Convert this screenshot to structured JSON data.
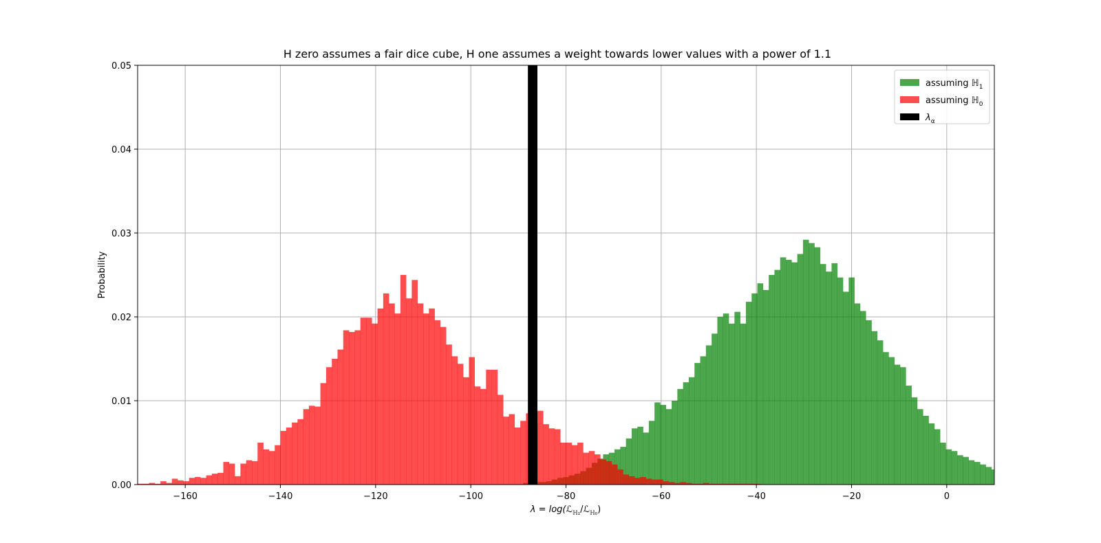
{
  "chart_data": {
    "type": "bar",
    "title": "H zero assumes a fair dice cube, H one assumes a weight towards lower values with a power of 1.1",
    "xlabel": "λ = log(ℒ_{ℍ1}/ℒ_{ℍ0})",
    "xlabel_parts": {
      "main": "λ = log(ℒ",
      "sub1": "ℍ₁",
      "mid": "/ℒ",
      "sub2": "ℍ₀",
      "end": ")"
    },
    "ylabel": "Probability",
    "xlim": [
      -170,
      10
    ],
    "ylim": [
      0,
      0.05
    ],
    "xticks": [
      -160,
      -140,
      -120,
      -100,
      -80,
      -60,
      -40,
      -20,
      0
    ],
    "xtick_labels": [
      "−160",
      "−140",
      "−120",
      "−100",
      "−80",
      "−60",
      "−40",
      "−20",
      "0"
    ],
    "yticks": [
      0,
      0.01,
      0.02,
      0.03,
      0.04,
      0.05
    ],
    "ytick_labels": [
      "0.00",
      "0.01",
      "0.02",
      "0.03",
      "0.04",
      "0.05"
    ],
    "grid": true,
    "legend_position": "top-right",
    "bin_width": 1.2,
    "series": [
      {
        "name": "assuming ℍ1",
        "legend": {
          "prefix": "assuming ",
          "sym": "ℍ",
          "sub": "1"
        },
        "color": "#008000",
        "alpha": 0.7,
        "bin_start": -89,
        "values": [
          0.0002,
          0.0002,
          0.0003,
          0.0003,
          0.0004,
          0.0006,
          0.0008,
          0.0009,
          0.0011,
          0.0013,
          0.0016,
          0.002,
          0.0026,
          0.0031,
          0.0036,
          0.0038,
          0.0042,
          0.0045,
          0.0055,
          0.0067,
          0.0069,
          0.0062,
          0.0076,
          0.0098,
          0.0095,
          0.009,
          0.01,
          0.0114,
          0.0122,
          0.0128,
          0.0145,
          0.0153,
          0.0166,
          0.018,
          0.02,
          0.0204,
          0.0192,
          0.0206,
          0.0192,
          0.0218,
          0.0228,
          0.024,
          0.0232,
          0.025,
          0.0256,
          0.0271,
          0.0268,
          0.0265,
          0.0275,
          0.0292,
          0.0288,
          0.0283,
          0.0263,
          0.0254,
          0.0264,
          0.0247,
          0.023,
          0.0247,
          0.0216,
          0.0207,
          0.0196,
          0.0183,
          0.0172,
          0.0158,
          0.0152,
          0.0143,
          0.014,
          0.0118,
          0.0104,
          0.009,
          0.0082,
          0.0073,
          0.0066,
          0.005,
          0.0042,
          0.004,
          0.0035,
          0.0033,
          0.0029,
          0.0027,
          0.0024,
          0.0021,
          0.0018,
          0.0014,
          0.0011,
          0.0008,
          0.0007,
          0.0005,
          0.0004,
          0.0003,
          0.0002,
          0.0002,
          0.0002,
          0.0001,
          0.0001,
          0.0002,
          0.0001,
          0.0001,
          0.0001,
          0.0001,
          0.0001,
          0.0001,
          0.0001
        ]
      },
      {
        "name": "assuming ℍ0",
        "legend": {
          "prefix": "assuming ",
          "sym": "ℍ",
          "sub": "0"
        },
        "color": "#ff0000",
        "alpha": 0.7,
        "bin_start": -170,
        "values": [
          0.0001,
          0.0001,
          0.0002,
          0.0001,
          0.0004,
          0.0002,
          0.0007,
          0.0005,
          0.0004,
          0.0008,
          0.0009,
          0.0008,
          0.0011,
          0.0013,
          0.0014,
          0.0027,
          0.0025,
          0.001,
          0.0025,
          0.0029,
          0.0028,
          0.005,
          0.0042,
          0.004,
          0.0047,
          0.0064,
          0.0068,
          0.0074,
          0.0078,
          0.009,
          0.0094,
          0.0093,
          0.0121,
          0.014,
          0.015,
          0.0161,
          0.0184,
          0.0182,
          0.0184,
          0.0199,
          0.0199,
          0.0192,
          0.021,
          0.0228,
          0.0216,
          0.0204,
          0.025,
          0.0222,
          0.0244,
          0.0216,
          0.0204,
          0.021,
          0.0196,
          0.0188,
          0.0167,
          0.0153,
          0.0144,
          0.0128,
          0.0152,
          0.0117,
          0.0114,
          0.0137,
          0.0137,
          0.0107,
          0.0081,
          0.0084,
          0.0068,
          0.0076,
          0.0085,
          0.0072,
          0.0088,
          0.0072,
          0.0067,
          0.0066,
          0.005,
          0.005,
          0.0047,
          0.005,
          0.0038,
          0.004,
          0.0036,
          0.003,
          0.0028,
          0.0024,
          0.0018,
          0.0012,
          0.001,
          0.0008,
          0.0009,
          0.0007,
          0.0006,
          0.0006,
          0.0004,
          0.0003,
          0.0002,
          0.0003,
          0.0002,
          0.0001,
          0.0001,
          0.0002,
          0.0001,
          0.0001,
          0.0001,
          0.0001,
          0.0001,
          0.0001,
          0.0001,
          0.0001,
          0.0001
        ]
      }
    ],
    "threshold": {
      "name": "λ_α",
      "legend": {
        "sym": "λ",
        "sub": "α"
      },
      "x_from": -88,
      "x_to": -86,
      "color": "#000000"
    }
  }
}
